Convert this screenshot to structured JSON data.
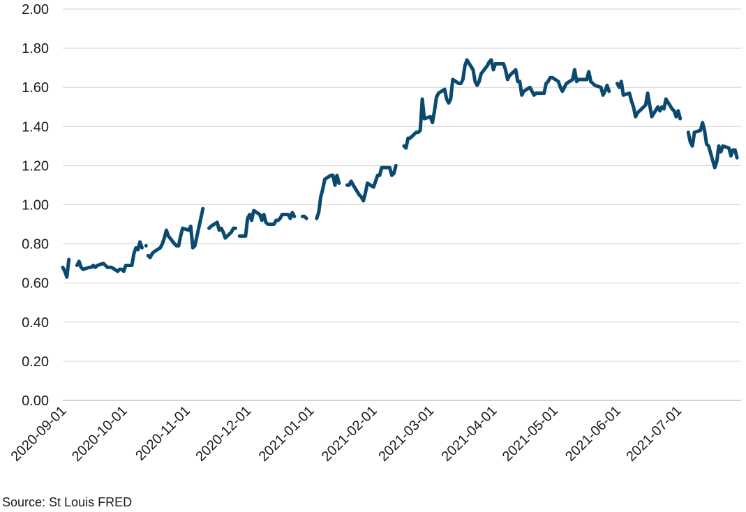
{
  "source_note": "Source: St Louis FRED",
  "colors": {
    "series": "#0b4a6f",
    "grid": "#d3d3d3",
    "axis": "#a6a6a6"
  },
  "chart_data": {
    "type": "line",
    "title": "",
    "xlabel": "",
    "ylabel": "",
    "ylim": [
      0,
      2
    ],
    "y_ticks": [
      "0.00",
      "0.20",
      "0.40",
      "0.60",
      "0.80",
      "1.00",
      "1.20",
      "1.40",
      "1.60",
      "1.80",
      "2.00"
    ],
    "x_ticks": [
      "2020-09-01",
      "2020-10-01",
      "2020-11-01",
      "2020-12-01",
      "2021-01-01",
      "2021-02-01",
      "2021-03-01",
      "2021-04-01",
      "2021-05-01",
      "2021-06-01",
      "2021-07-01"
    ],
    "xlim": [
      "2020-09-01",
      "2021-07-31"
    ],
    "grid": true,
    "legend": "none",
    "series": [
      {
        "segments": [
          [
            [
              "2020-09-01",
              0.68
            ],
            [
              "2020-09-02",
              0.66
            ],
            [
              "2020-09-03",
              0.63
            ],
            [
              "2020-09-04",
              0.72
            ]
          ],
          [
            [
              "2020-09-08",
              0.69
            ],
            [
              "2020-09-09",
              0.71
            ],
            [
              "2020-09-10",
              0.68
            ],
            [
              "2020-09-11",
              0.67
            ],
            [
              "2020-09-14",
              0.68
            ],
            [
              "2020-09-15",
              0.68
            ],
            [
              "2020-09-16",
              0.69
            ],
            [
              "2020-09-17",
              0.68
            ],
            [
              "2020-09-18",
              0.69
            ],
            [
              "2020-09-21",
              0.7
            ],
            [
              "2020-09-22",
              0.69
            ],
            [
              "2020-09-23",
              0.68
            ],
            [
              "2020-09-24",
              0.68
            ],
            [
              "2020-09-25",
              0.68
            ],
            [
              "2020-09-28",
              0.66
            ],
            [
              "2020-09-29",
              0.67
            ],
            [
              "2020-09-30",
              0.67
            ],
            [
              "2020-10-01",
              0.66
            ],
            [
              "2020-10-02",
              0.69
            ],
            [
              "2020-10-05",
              0.69
            ],
            [
              "2020-10-06",
              0.75
            ],
            [
              "2020-10-07",
              0.78
            ],
            [
              "2020-10-08",
              0.77
            ],
            [
              "2020-10-09",
              0.81
            ],
            [
              "2020-10-10",
              0.78
            ]
          ],
          [
            [
              "2020-10-12",
              0.79
            ]
          ],
          [
            [
              "2020-10-13",
              0.74
            ],
            [
              "2020-10-14",
              0.73
            ],
            [
              "2020-10-15",
              0.75
            ],
            [
              "2020-10-16",
              0.76
            ],
            [
              "2020-10-19",
              0.78
            ],
            [
              "2020-10-20",
              0.8
            ],
            [
              "2020-10-21",
              0.83
            ],
            [
              "2020-10-22",
              0.87
            ],
            [
              "2020-10-23",
              0.84
            ],
            [
              "2020-10-26",
              0.8
            ],
            [
              "2020-10-27",
              0.79
            ],
            [
              "2020-10-28",
              0.79
            ],
            [
              "2020-10-29",
              0.84
            ],
            [
              "2020-10-30",
              0.88
            ],
            [
              "2020-11-02",
              0.87
            ],
            [
              "2020-11-03",
              0.89
            ],
            [
              "2020-11-04",
              0.78
            ],
            [
              "2020-11-05",
              0.79
            ],
            [
              "2020-11-09",
              0.98
            ]
          ],
          [
            [
              "2020-11-12",
              0.88
            ],
            [
              "2020-11-13",
              0.89
            ],
            [
              "2020-11-16",
              0.91
            ],
            [
              "2020-11-17",
              0.87
            ],
            [
              "2020-11-18",
              0.88
            ],
            [
              "2020-11-19",
              0.86
            ],
            [
              "2020-11-20",
              0.83
            ],
            [
              "2020-11-23",
              0.86
            ],
            [
              "2020-11-24",
              0.88
            ],
            [
              "2020-11-25",
              0.88
            ]
          ],
          [
            [
              "2020-11-27",
              0.84
            ],
            [
              "2020-11-30",
              0.84
            ],
            [
              "2020-12-01",
              0.93
            ],
            [
              "2020-12-02",
              0.95
            ],
            [
              "2020-12-03",
              0.92
            ],
            [
              "2020-12-04",
              0.97
            ],
            [
              "2020-12-07",
              0.95
            ],
            [
              "2020-12-08",
              0.92
            ],
            [
              "2020-12-09",
              0.95
            ],
            [
              "2020-12-10",
              0.91
            ],
            [
              "2020-12-11",
              0.9
            ],
            [
              "2020-12-14",
              0.9
            ],
            [
              "2020-12-15",
              0.92
            ],
            [
              "2020-12-16",
              0.92
            ],
            [
              "2020-12-17",
              0.93
            ],
            [
              "2020-12-18",
              0.95
            ],
            [
              "2020-12-21",
              0.95
            ],
            [
              "2020-12-22",
              0.93
            ],
            [
              "2020-12-23",
              0.96
            ],
            [
              "2020-12-24",
              0.94
            ]
          ],
          [
            [
              "2020-12-28",
              0.94
            ],
            [
              "2020-12-29",
              0.94
            ],
            [
              "2020-12-30",
              0.93
            ]
          ],
          [
            [
              "2021-01-04",
              0.93
            ],
            [
              "2021-01-05",
              0.96
            ],
            [
              "2021-01-06",
              1.04
            ],
            [
              "2021-01-07",
              1.08
            ],
            [
              "2021-01-08",
              1.13
            ],
            [
              "2021-01-11",
              1.15
            ],
            [
              "2021-01-12",
              1.15
            ],
            [
              "2021-01-13",
              1.1
            ],
            [
              "2021-01-14",
              1.15
            ],
            [
              "2021-01-15",
              1.11
            ]
          ],
          [
            [
              "2021-01-19",
              1.1
            ],
            [
              "2021-01-20",
              1.1
            ],
            [
              "2021-01-21",
              1.12
            ],
            [
              "2021-01-22",
              1.1
            ],
            [
              "2021-01-25",
              1.05
            ],
            [
              "2021-01-26",
              1.04
            ],
            [
              "2021-01-27",
              1.02
            ],
            [
              "2021-01-28",
              1.06
            ],
            [
              "2021-01-29",
              1.11
            ],
            [
              "2021-02-01",
              1.09
            ],
            [
              "2021-02-02",
              1.12
            ],
            [
              "2021-02-03",
              1.15
            ],
            [
              "2021-02-04",
              1.15
            ],
            [
              "2021-02-05",
              1.19
            ],
            [
              "2021-02-08",
              1.19
            ],
            [
              "2021-02-09",
              1.19
            ],
            [
              "2021-02-10",
              1.15
            ],
            [
              "2021-02-11",
              1.16
            ],
            [
              "2021-02-12",
              1.2
            ]
          ],
          [
            [
              "2021-02-16",
              1.3
            ],
            [
              "2021-02-17",
              1.29
            ],
            [
              "2021-02-18",
              1.34
            ],
            [
              "2021-02-19",
              1.34
            ],
            [
              "2021-02-22",
              1.37
            ],
            [
              "2021-02-23",
              1.37
            ],
            [
              "2021-02-24",
              1.38
            ],
            [
              "2021-02-25",
              1.54
            ],
            [
              "2021-02-26",
              1.44
            ],
            [
              "2021-03-01",
              1.45
            ],
            [
              "2021-03-02",
              1.42
            ],
            [
              "2021-03-03",
              1.48
            ],
            [
              "2021-03-04",
              1.55
            ],
            [
              "2021-03-05",
              1.57
            ],
            [
              "2021-03-08",
              1.59
            ],
            [
              "2021-03-09",
              1.54
            ],
            [
              "2021-03-10",
              1.52
            ],
            [
              "2021-03-11",
              1.54
            ],
            [
              "2021-03-12",
              1.64
            ],
            [
              "2021-03-15",
              1.62
            ],
            [
              "2021-03-16",
              1.62
            ],
            [
              "2021-03-17",
              1.64
            ],
            [
              "2021-03-18",
              1.71
            ],
            [
              "2021-03-19",
              1.74
            ],
            [
              "2021-03-22",
              1.69
            ],
            [
              "2021-03-23",
              1.63
            ],
            [
              "2021-03-24",
              1.61
            ],
            [
              "2021-03-25",
              1.63
            ],
            [
              "2021-03-26",
              1.67
            ],
            [
              "2021-03-29",
              1.71
            ],
            [
              "2021-03-30",
              1.73
            ],
            [
              "2021-03-31",
              1.74
            ],
            [
              "2021-04-01",
              1.69
            ],
            [
              "2021-04-02",
              1.72
            ],
            [
              "2021-04-05",
              1.72
            ],
            [
              "2021-04-06",
              1.72
            ],
            [
              "2021-04-07",
              1.69
            ],
            [
              "2021-04-08",
              1.64
            ],
            [
              "2021-04-09",
              1.66
            ],
            [
              "2021-04-12",
              1.69
            ],
            [
              "2021-04-13",
              1.63
            ],
            [
              "2021-04-14",
              1.63
            ],
            [
              "2021-04-15",
              1.56
            ],
            [
              "2021-04-16",
              1.58
            ],
            [
              "2021-04-19",
              1.6
            ],
            [
              "2021-04-20",
              1.58
            ],
            [
              "2021-04-21",
              1.56
            ],
            [
              "2021-04-22",
              1.57
            ],
            [
              "2021-04-23",
              1.57
            ],
            [
              "2021-04-26",
              1.57
            ],
            [
              "2021-04-27",
              1.62
            ],
            [
              "2021-04-28",
              1.63
            ],
            [
              "2021-04-29",
              1.65
            ],
            [
              "2021-04-30",
              1.65
            ],
            [
              "2021-05-03",
              1.63
            ],
            [
              "2021-05-04",
              1.6
            ],
            [
              "2021-05-05",
              1.58
            ],
            [
              "2021-05-06",
              1.6
            ],
            [
              "2021-05-07",
              1.62
            ],
            [
              "2021-05-10",
              1.64
            ],
            [
              "2021-05-11",
              1.69
            ],
            [
              "2021-05-12",
              1.63
            ],
            [
              "2021-05-13",
              1.64
            ],
            [
              "2021-05-14",
              1.64
            ],
            [
              "2021-05-17",
              1.64
            ],
            [
              "2021-05-18",
              1.68
            ],
            [
              "2021-05-19",
              1.63
            ],
            [
              "2021-05-20",
              1.62
            ],
            [
              "2021-05-21",
              1.61
            ],
            [
              "2021-05-24",
              1.6
            ],
            [
              "2021-05-25",
              1.56
            ],
            [
              "2021-05-26",
              1.58
            ],
            [
              "2021-05-27",
              1.61
            ],
            [
              "2021-05-28",
              1.58
            ]
          ],
          [
            [
              "2021-06-01",
              1.62
            ],
            [
              "2021-06-02",
              1.6
            ],
            [
              "2021-06-03",
              1.63
            ],
            [
              "2021-06-04",
              1.56
            ],
            [
              "2021-06-07",
              1.57
            ],
            [
              "2021-06-08",
              1.53
            ],
            [
              "2021-06-09",
              1.5
            ],
            [
              "2021-06-10",
              1.45
            ],
            [
              "2021-06-11",
              1.47
            ],
            [
              "2021-06-14",
              1.5
            ],
            [
              "2021-06-15",
              1.51
            ],
            [
              "2021-06-16",
              1.57
            ],
            [
              "2021-06-17",
              1.51
            ],
            [
              "2021-06-18",
              1.45
            ],
            [
              "2021-06-21",
              1.5
            ],
            [
              "2021-06-22",
              1.48
            ],
            [
              "2021-06-23",
              1.5
            ],
            [
              "2021-06-24",
              1.49
            ],
            [
              "2021-06-25",
              1.54
            ],
            [
              "2021-06-28",
              1.49
            ],
            [
              "2021-06-29",
              1.48
            ],
            [
              "2021-06-30",
              1.45
            ],
            [
              "2021-07-01",
              1.48
            ],
            [
              "2021-07-02",
              1.44
            ]
          ],
          [
            [
              "2021-07-06",
              1.37
            ],
            [
              "2021-07-07",
              1.32
            ],
            [
              "2021-07-08",
              1.3
            ],
            [
              "2021-07-09",
              1.37
            ],
            [
              "2021-07-12",
              1.38
            ],
            [
              "2021-07-13",
              1.42
            ],
            [
              "2021-07-14",
              1.38
            ],
            [
              "2021-07-15",
              1.31
            ],
            [
              "2021-07-16",
              1.3
            ],
            [
              "2021-07-19",
              1.19
            ],
            [
              "2021-07-20",
              1.22
            ],
            [
              "2021-07-21",
              1.3
            ],
            [
              "2021-07-22",
              1.27
            ],
            [
              "2021-07-23",
              1.3
            ],
            [
              "2021-07-26",
              1.29
            ],
            [
              "2021-07-27",
              1.25
            ],
            [
              "2021-07-28",
              1.28
            ],
            [
              "2021-07-29",
              1.28
            ],
            [
              "2021-07-30",
              1.24
            ]
          ]
        ]
      }
    ]
  }
}
